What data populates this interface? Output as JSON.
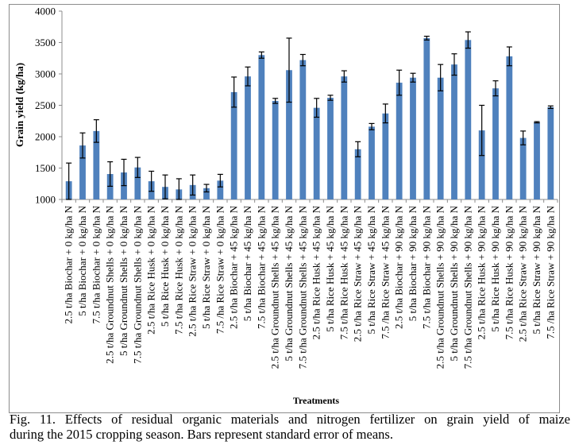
{
  "figure": {
    "caption_line1": "Fig. 11. Effects of residual organic materials and nitrogen fertilizer on grain yield of maize",
    "caption_line2": "during the 2015 cropping season. Bars represent standard error of means."
  },
  "chart_data": {
    "type": "bar",
    "title": "",
    "xlabel": "Treatments",
    "ylabel": "Grain yield (kg/ha)",
    "ylim": [
      1000,
      4000
    ],
    "yticks": [
      1000,
      1500,
      2000,
      2500,
      3000,
      3500,
      4000
    ],
    "grid": false,
    "legend": "none",
    "bar_color": "#4f81bd",
    "error_bar_color": "#000000",
    "categories": [
      "2.5 t/ha Biochar + 0 kg/ha N",
      "5 t/ha Biochar + 0 kg/ha N",
      "7.5 t/ha Biochar + 0 kg/ha N",
      "2.5 t/ha Groundnut Shells + 0 kg/ha N",
      "5 t/ha Groundnut Shells + 0 kg/ha N",
      "7.5 t/ha Groundnut Shells + 0 kg/ha N",
      "2.5 t/ha Rice Husk + 0 kg/ha N",
      "5 t/ha Rice Husk + 0 kg/ha N",
      "7.5 t/ha Rice Husk + 0 kg/ha N",
      "2.5 t/ha Rice Straw + 0 kg/ha N",
      "5 t/ha Rice Straw + 0 kg/ha N",
      "7.5 /ha Rice Straw + 0 kg/ha N",
      "2.5 t/ha Biochar + 45 kg/ha N",
      "5 t/ha Biochar + 45 kg/ha N",
      "7.5 t/ha Biochar + 45 kg/ha N",
      "2.5 t/ha Groundnut Shells + 45 kg/ha N",
      "5 t/ha Groundnut Shells + 45 kg/ha N",
      "7.5 t/ha Groundnut Shells + 45 kg/ha N",
      "2.5 t/ha Rice Husk + 45 kg/ha N",
      "5 t/ha Rice Husk + 45 kg/ha N",
      "7.5 t/ha Rice Husk + 45 kg/ha N",
      "2.5 t/ha Rice Straw + 45 kg/ha N",
      "5 t/ha Rice Straw + 45 kg/ha N",
      "7.5 /ha Rice Straw + 45 kg/ha N",
      "2.5 t/ha Biochar + 90 kg/ha N",
      "5 t/ha Biochar + 90 kg/ha N",
      "7.5 t/ha Biochar + 90 kg/ha N",
      "2.5 t/ha Groundnut Shells + 90 kg/ha N",
      "5 t/ha Groundnut Shells + 90 kg/ha N",
      "7.5 t/ha Groundnut Shells + 90 kg/ha N",
      "2.5 t/ha Rice Husk + 90 kg/ha N",
      "5 t/ha Rice Husk + 90 kg/ha N",
      "7.5 t/ha Rice Husk + 90 kg/ha N",
      "2.5 t/ha Rice Straw + 90 kg/ha N",
      "5 t/ha Rice Straw + 90 kg/ha N",
      "7.5 /ha Rice Straw + 90 kg/ha N"
    ],
    "values": [
      1290,
      1860,
      2090,
      1405,
      1430,
      1510,
      1290,
      1200,
      1160,
      1230,
      1180,
      1300,
      2710,
      2960,
      3300,
      2570,
      3060,
      3220,
      2460,
      2620,
      2960,
      1800,
      2160,
      2370,
      2860,
      2940,
      3570,
      2940,
      3150,
      3540,
      2100,
      2770,
      3280,
      1980,
      2230,
      2470
    ],
    "errors": [
      290,
      200,
      180,
      195,
      210,
      160,
      160,
      190,
      170,
      160,
      60,
      100,
      240,
      150,
      50,
      40,
      510,
      90,
      150,
      40,
      90,
      120,
      50,
      150,
      200,
      70,
      30,
      210,
      170,
      130,
      400,
      120,
      150,
      110,
      10,
      20
    ]
  }
}
